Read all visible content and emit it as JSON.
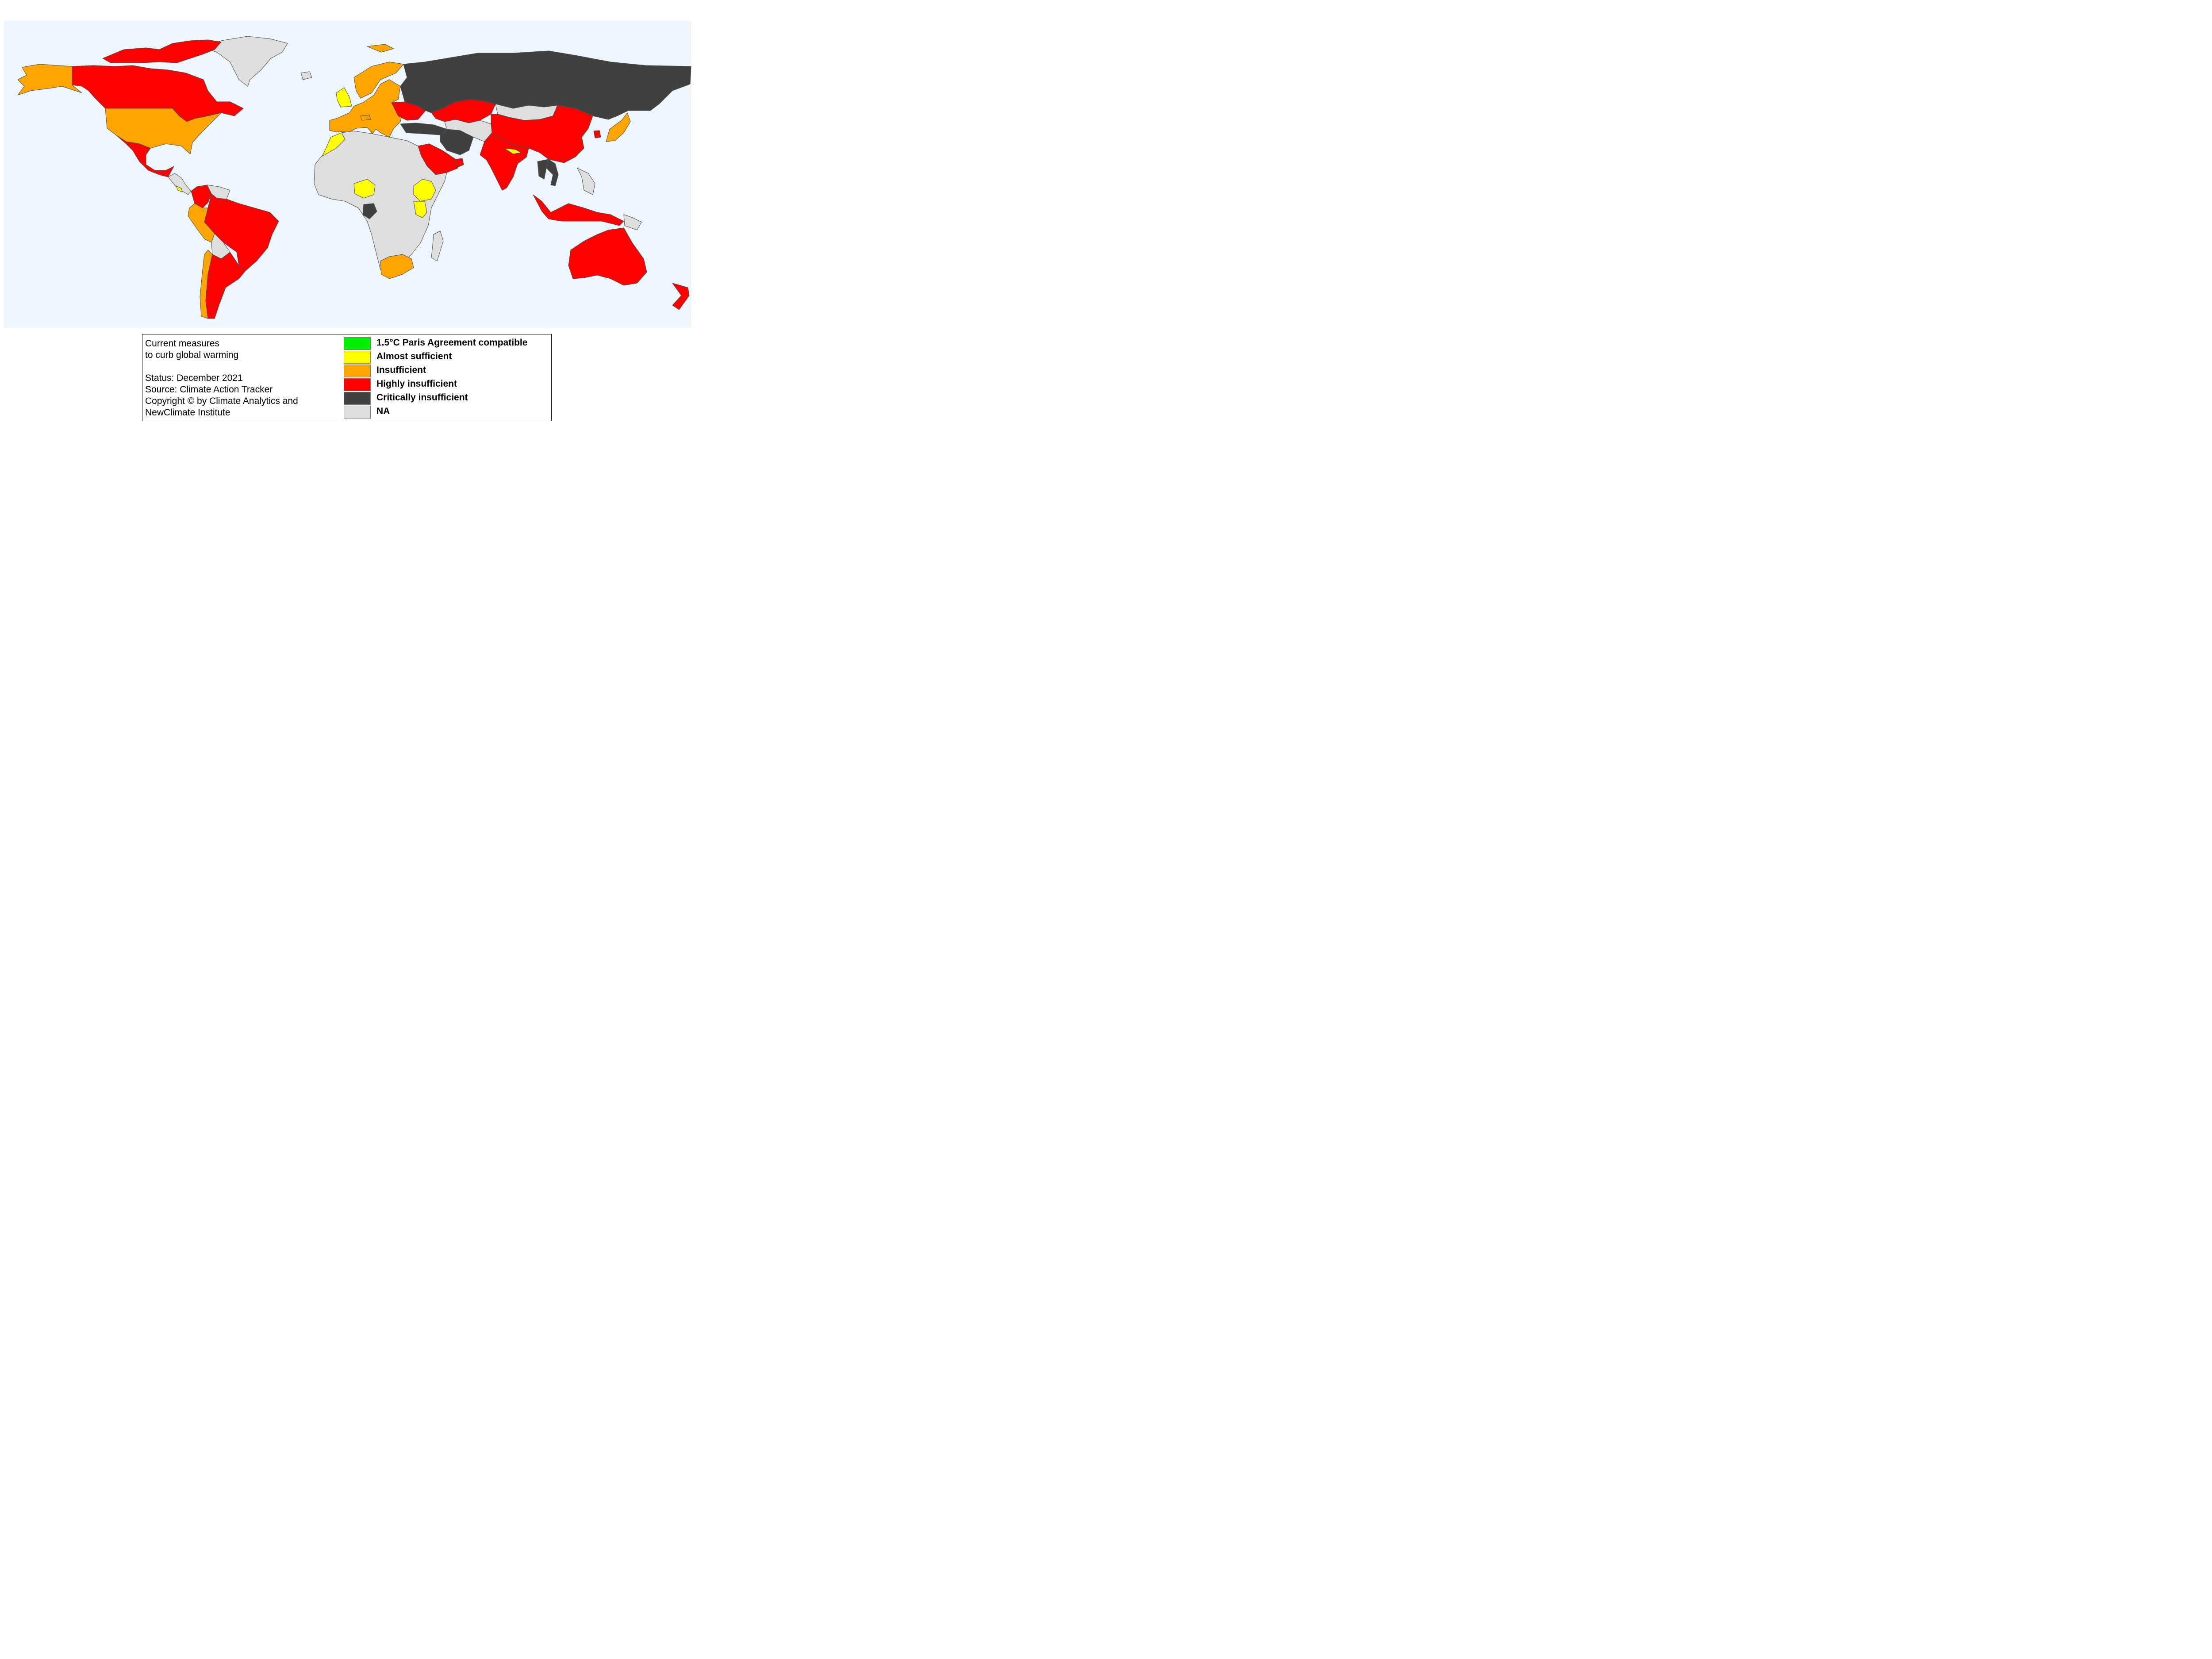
{
  "map": {
    "ocean_color": "#eef6fd",
    "border_color": "#4d4d4d",
    "categories": {
      "compatible": "#00ee00",
      "almost": "#ffff00",
      "insufficient": "#ffa500",
      "highly": "#ff0000",
      "critical": "#404040",
      "na": "#dedede"
    },
    "regions": [
      {
        "name": "Greenland",
        "category": "na"
      },
      {
        "name": "Alaska",
        "category": "insufficient"
      },
      {
        "name": "Canada",
        "category": "highly"
      },
      {
        "name": "Canadian Arctic Islands",
        "category": "highly"
      },
      {
        "name": "USA",
        "category": "insufficient"
      },
      {
        "name": "Mexico",
        "category": "highly"
      },
      {
        "name": "Central America",
        "category": "na"
      },
      {
        "name": "Costa Rica",
        "category": "almost"
      },
      {
        "name": "Colombia",
        "category": "highly"
      },
      {
        "name": "Venezuela",
        "category": "na"
      },
      {
        "name": "Brazil",
        "category": "highly"
      },
      {
        "name": "Peru",
        "category": "insufficient"
      },
      {
        "name": "Bolivia",
        "category": "na"
      },
      {
        "name": "Chile",
        "category": "insufficient"
      },
      {
        "name": "Argentina",
        "category": "highly"
      },
      {
        "name": "Iceland",
        "category": "na"
      },
      {
        "name": "United Kingdom",
        "category": "almost"
      },
      {
        "name": "Norway",
        "category": "insufficient"
      },
      {
        "name": "European Union",
        "category": "insufficient"
      },
      {
        "name": "Svalbard",
        "category": "insufficient"
      },
      {
        "name": "Switzerland",
        "category": "insufficient"
      },
      {
        "name": "Ukraine",
        "category": "highly"
      },
      {
        "name": "Turkey",
        "category": "critical"
      },
      {
        "name": "Russia",
        "category": "critical"
      },
      {
        "name": "Kazakhstan",
        "category": "highly"
      },
      {
        "name": "Mongolia",
        "category": "na"
      },
      {
        "name": "China",
        "category": "highly"
      },
      {
        "name": "Japan",
        "category": "insufficient"
      },
      {
        "name": "South Korea",
        "category": "highly"
      },
      {
        "name": "Iran",
        "category": "critical"
      },
      {
        "name": "Central Asia",
        "category": "na"
      },
      {
        "name": "Saudi Arabia",
        "category": "highly"
      },
      {
        "name": "UAE",
        "category": "highly"
      },
      {
        "name": "India",
        "category": "highly"
      },
      {
        "name": "Nepal",
        "category": "almost"
      },
      {
        "name": "Vietnam",
        "category": "critical"
      },
      {
        "name": "Thailand",
        "category": "critical"
      },
      {
        "name": "Indonesia",
        "category": "highly"
      },
      {
        "name": "Philippines",
        "category": "na"
      },
      {
        "name": "Papua New Guinea",
        "category": "na"
      },
      {
        "name": "Australia",
        "category": "highly"
      },
      {
        "name": "New Zealand",
        "category": "highly"
      },
      {
        "name": "Morocco",
        "category": "almost"
      },
      {
        "name": "Africa",
        "category": "na"
      },
      {
        "name": "Nigeria",
        "category": "almost"
      },
      {
        "name": "Gabon",
        "category": "critical"
      },
      {
        "name": "Ethiopia",
        "category": "almost"
      },
      {
        "name": "Kenya",
        "category": "almost"
      },
      {
        "name": "South Africa",
        "category": "insufficient"
      },
      {
        "name": "Madagascar",
        "category": "na"
      }
    ]
  },
  "legend": {
    "title_lines": [
      "Current measures",
      "to curb global warming"
    ],
    "info_lines": [
      "Status: December 2021",
      "Source: Climate Action Tracker",
      "Copyright © by Climate Analytics and",
      "NewClimate Institute"
    ],
    "items": [
      {
        "label": "1.5°C Paris Agreement compatible",
        "color": "#00ee00"
      },
      {
        "label": "Almost sufficient",
        "color": "#ffff00"
      },
      {
        "label": "Insufficient",
        "color": "#ffa500"
      },
      {
        "label": "Highly insufficient",
        "color": "#ff0000"
      },
      {
        "label": "Critically insufficient",
        "color": "#404040"
      },
      {
        "label": "NA",
        "color": "#dedede"
      }
    ]
  }
}
